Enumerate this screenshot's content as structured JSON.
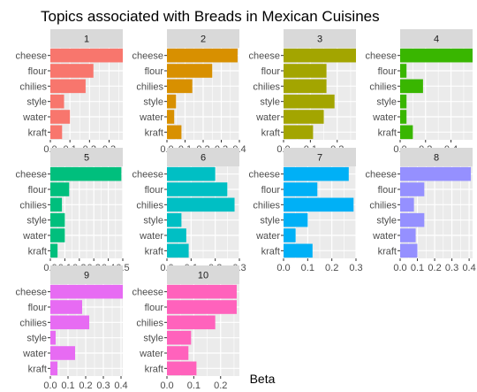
{
  "chart_data": {
    "type": "bar",
    "orientation": "horizontal",
    "title": "Topics associated with Breads in Mexican Cuisines",
    "xlabel": "Beta",
    "ylabel": "",
    "categories": [
      "cheese",
      "flour",
      "chilies",
      "style",
      "water",
      "kraft"
    ],
    "panel_background": "#ebebeb",
    "grid_color": "#ffffff",
    "strip_background": "#d9d9d9",
    "legend": "none",
    "panels": [
      {
        "label": "1",
        "color": "#F8766D",
        "values": [
          0.37,
          0.22,
          0.18,
          0.07,
          0.1,
          0.06
        ],
        "ticks": [
          0.0,
          0.1,
          0.2,
          0.3
        ],
        "tick_labels": [
          "0.0",
          "0.1",
          "0.2",
          "0.3"
        ],
        "xlim": [
          0,
          0.37
        ]
      },
      {
        "label": "2",
        "color": "#D89000",
        "values": [
          0.39,
          0.25,
          0.14,
          0.05,
          0.04,
          0.08
        ],
        "ticks": [
          0.0,
          0.1,
          0.2,
          0.3,
          0.4
        ],
        "tick_labels": [
          "0.0",
          "0.1",
          "0.2",
          "0.3",
          "0.4"
        ],
        "xlim": [
          0,
          0.4
        ]
      },
      {
        "label": "3",
        "color": "#A3A500",
        "values": [
          0.27,
          0.16,
          0.16,
          0.19,
          0.15,
          0.11
        ],
        "ticks": [
          0.0,
          0.1,
          0.2
        ],
        "tick_labels": [
          "0.0",
          "0.1",
          "0.2"
        ],
        "xlim": [
          0,
          0.27
        ]
      },
      {
        "label": "4",
        "color": "#39B600",
        "values": [
          0.57,
          0.05,
          0.18,
          0.05,
          0.05,
          0.1
        ],
        "ticks": [
          0.0,
          0.2,
          0.4
        ],
        "tick_labels": [
          "0.0",
          "0.2",
          "0.4"
        ],
        "xlim": [
          0,
          0.57
        ]
      },
      {
        "label": "5",
        "color": "#00BF7D",
        "values": [
          0.49,
          0.13,
          0.08,
          0.1,
          0.1,
          0.05
        ],
        "ticks": [
          0.0,
          0.1,
          0.2,
          0.3,
          0.4,
          0.5
        ],
        "tick_labels": [
          "0.0",
          "0.1",
          "0.2",
          "0.3",
          "0.4",
          "0.5"
        ],
        "xlim": [
          0,
          0.5
        ]
      },
      {
        "label": "6",
        "color": "#00BFC4",
        "values": [
          0.2,
          0.25,
          0.28,
          0.06,
          0.08,
          0.09
        ],
        "ticks": [
          0.0,
          0.1,
          0.2,
          0.3
        ],
        "tick_labels": [
          "0.0",
          "0.1",
          "0.2",
          "0.3"
        ],
        "xlim": [
          0,
          0.3
        ]
      },
      {
        "label": "7",
        "color": "#00B0F6",
        "values": [
          0.27,
          0.14,
          0.29,
          0.1,
          0.05,
          0.12
        ],
        "ticks": [
          0.0,
          0.1,
          0.2,
          0.3
        ],
        "tick_labels": [
          "0.0",
          "0.1",
          "0.2",
          "0.3"
        ],
        "xlim": [
          0,
          0.3
        ]
      },
      {
        "label": "8",
        "color": "#9590FF",
        "values": [
          0.41,
          0.14,
          0.08,
          0.14,
          0.09,
          0.1
        ],
        "ticks": [
          0.0,
          0.1,
          0.2,
          0.3,
          0.4
        ],
        "tick_labels": [
          "0.0",
          "0.1",
          "0.2",
          "0.3",
          "0.4"
        ],
        "xlim": [
          0,
          0.42
        ]
      },
      {
        "label": "9",
        "color": "#E76BF3",
        "values": [
          0.41,
          0.18,
          0.22,
          0.03,
          0.14,
          0.04
        ],
        "ticks": [
          0.0,
          0.1,
          0.2,
          0.3,
          0.4
        ],
        "tick_labels": [
          "0.0",
          "0.1",
          "0.2",
          "0.3",
          "0.4"
        ],
        "xlim": [
          0,
          0.41
        ]
      },
      {
        "label": "10",
        "color": "#FF62BC",
        "values": [
          0.26,
          0.26,
          0.18,
          0.09,
          0.08,
          0.11
        ],
        "ticks": [
          0.0,
          0.1,
          0.2
        ],
        "tick_labels": [
          "0.0",
          "0.1",
          "0.2"
        ],
        "xlim": [
          0,
          0.27
        ]
      }
    ]
  }
}
